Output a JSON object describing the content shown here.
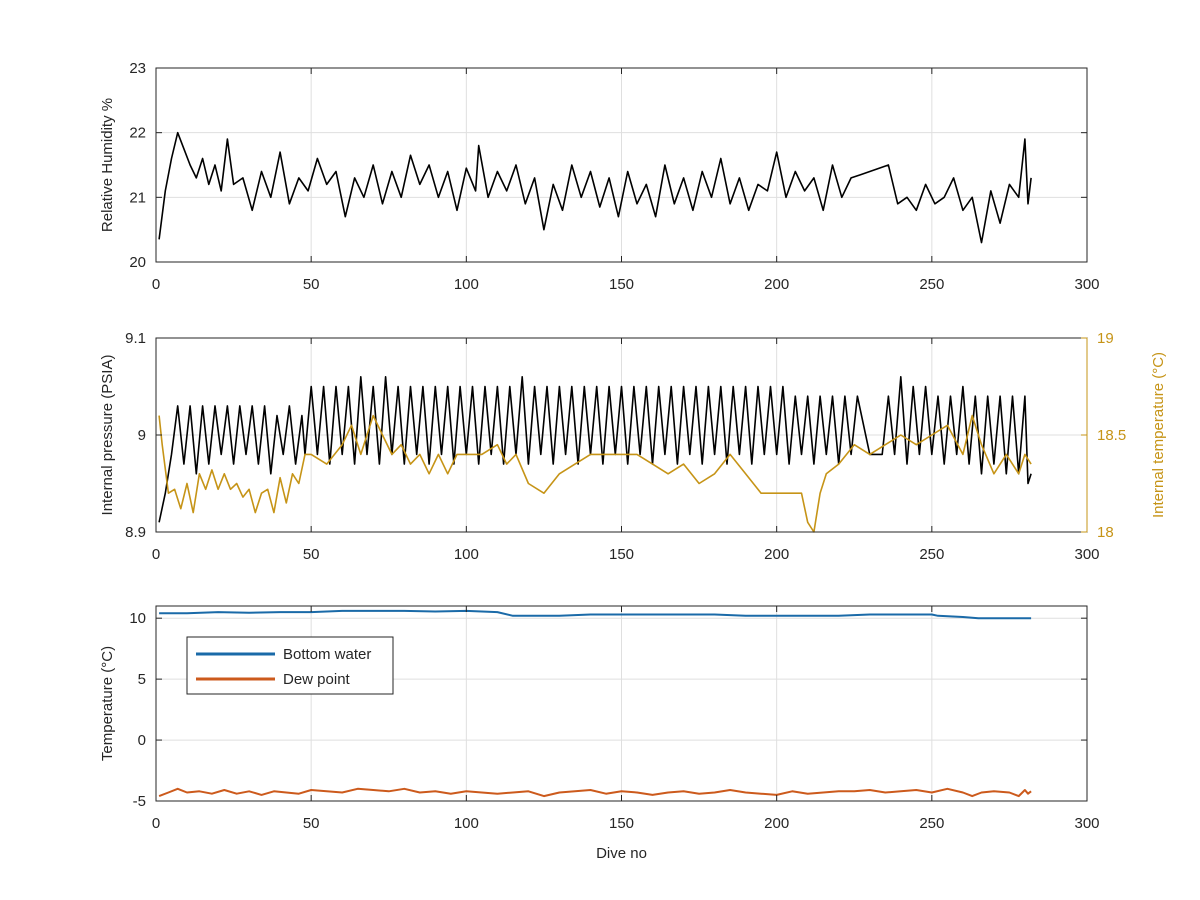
{
  "figure": {
    "background": "#ffffff",
    "grid_color": "#dfdfdf",
    "axis_color": "#262626"
  },
  "chart_data": [
    {
      "type": "line",
      "ylabel": "Relative Humidity %",
      "xlim": [
        0,
        300
      ],
      "ylim": [
        20,
        23
      ],
      "xticks": [
        0,
        50,
        100,
        150,
        200,
        250,
        300
      ],
      "yticks": [
        20,
        21,
        22,
        23
      ],
      "grid": true,
      "series": [
        {
          "color": "#000000",
          "x": [
            1,
            3,
            5,
            7,
            9,
            11,
            13,
            15,
            17,
            19,
            21,
            23,
            25,
            28,
            31,
            34,
            37,
            40,
            43,
            46,
            49,
            52,
            55,
            58,
            61,
            64,
            67,
            70,
            73,
            76,
            79,
            82,
            85,
            88,
            91,
            94,
            97,
            100,
            103,
            104,
            107,
            110,
            113,
            116,
            119,
            122,
            125,
            128,
            131,
            134,
            137,
            140,
            143,
            146,
            149,
            152,
            155,
            158,
            161,
            164,
            167,
            170,
            173,
            176,
            179,
            182,
            185,
            188,
            191,
            194,
            197,
            200,
            203,
            206,
            209,
            212,
            215,
            218,
            221,
            224,
            227,
            230,
            233,
            236,
            239,
            242,
            245,
            248,
            251,
            254,
            257,
            260,
            263,
            266,
            269,
            272,
            275,
            278,
            280,
            281,
            282
          ],
          "y": [
            20.35,
            21.1,
            21.6,
            22.0,
            21.75,
            21.5,
            21.3,
            21.6,
            21.2,
            21.5,
            21.1,
            21.9,
            21.2,
            21.3,
            20.8,
            21.4,
            21.0,
            21.7,
            20.9,
            21.3,
            21.1,
            21.6,
            21.2,
            21.4,
            20.7,
            21.3,
            21.0,
            21.5,
            20.9,
            21.4,
            21.0,
            21.65,
            21.2,
            21.5,
            21.0,
            21.4,
            20.8,
            21.45,
            21.1,
            21.8,
            21.0,
            21.4,
            21.1,
            21.5,
            20.9,
            21.3,
            20.5,
            21.2,
            20.8,
            21.5,
            21.0,
            21.4,
            20.85,
            21.3,
            20.7,
            21.4,
            20.9,
            21.2,
            20.7,
            21.5,
            20.9,
            21.3,
            20.8,
            21.4,
            21.0,
            21.6,
            20.9,
            21.3,
            20.8,
            21.2,
            21.1,
            21.7,
            21.0,
            21.4,
            21.1,
            21.3,
            20.8,
            21.5,
            21.0,
            21.3,
            21.35,
            21.4,
            21.45,
            21.5,
            20.9,
            21.0,
            20.8,
            21.2,
            20.9,
            21.0,
            21.3,
            20.8,
            21.0,
            20.3,
            21.1,
            20.6,
            21.2,
            21.0,
            21.9,
            20.9,
            21.3
          ]
        }
      ]
    },
    {
      "type": "line",
      "ylabel": "Internal pressure (PSIA)",
      "y2label": "Internal temperature (°C)",
      "xlim": [
        0,
        300
      ],
      "ylim": [
        8.9,
        9.1
      ],
      "y2lim": [
        18,
        19
      ],
      "xticks": [
        0,
        50,
        100,
        150,
        200,
        250,
        300
      ],
      "yticks": [
        8.9,
        9,
        9.1
      ],
      "y2ticks": [
        18,
        18.5,
        19
      ],
      "grid": true,
      "series": [
        {
          "axis": "left",
          "color": "#000000",
          "x": [
            1,
            3,
            5,
            7,
            9,
            11,
            13,
            15,
            17,
            19,
            21,
            23,
            25,
            27,
            29,
            31,
            33,
            35,
            37,
            39,
            41,
            43,
            45,
            47,
            48,
            50,
            52,
            54,
            56,
            58,
            60,
            62,
            64,
            66,
            68,
            70,
            72,
            74,
            76,
            78,
            80,
            82,
            84,
            86,
            88,
            90,
            92,
            94,
            96,
            98,
            100,
            102,
            104,
            106,
            108,
            110,
            112,
            114,
            116,
            118,
            120,
            122,
            124,
            126,
            128,
            130,
            132,
            134,
            136,
            138,
            140,
            142,
            144,
            146,
            148,
            150,
            152,
            154,
            156,
            158,
            160,
            162,
            164,
            166,
            168,
            170,
            172,
            174,
            176,
            178,
            180,
            182,
            184,
            186,
            188,
            190,
            192,
            194,
            196,
            198,
            200,
            202,
            204,
            206,
            208,
            210,
            212,
            214,
            216,
            218,
            220,
            222,
            224,
            226,
            230,
            234,
            236,
            238,
            240,
            242,
            244,
            246,
            248,
            250,
            252,
            254,
            256,
            258,
            260,
            262,
            264,
            266,
            268,
            270,
            272,
            274,
            276,
            278,
            280,
            281,
            282
          ],
          "y": [
            8.91,
            8.94,
            8.98,
            9.03,
            8.97,
            9.03,
            8.96,
            9.03,
            8.97,
            9.03,
            8.98,
            9.03,
            8.97,
            9.03,
            8.98,
            9.03,
            8.97,
            9.03,
            8.96,
            9.02,
            8.98,
            9.03,
            8.97,
            9.02,
            8.98,
            9.05,
            8.98,
            9.05,
            8.97,
            9.05,
            8.98,
            9.05,
            8.97,
            9.06,
            8.98,
            9.05,
            8.97,
            9.06,
            8.98,
            9.05,
            8.97,
            9.05,
            8.98,
            9.05,
            8.97,
            9.05,
            8.98,
            9.05,
            8.97,
            9.05,
            8.98,
            9.05,
            8.97,
            9.05,
            8.98,
            9.05,
            8.97,
            9.05,
            8.98,
            9.06,
            8.97,
            9.05,
            8.98,
            9.05,
            8.97,
            9.05,
            8.98,
            9.05,
            8.97,
            9.05,
            8.98,
            9.05,
            8.97,
            9.05,
            8.98,
            9.05,
            8.97,
            9.05,
            8.98,
            9.05,
            8.97,
            9.05,
            8.98,
            9.05,
            8.97,
            9.05,
            8.98,
            9.05,
            8.97,
            9.05,
            8.98,
            9.05,
            8.97,
            9.05,
            8.98,
            9.05,
            8.97,
            9.05,
            8.98,
            9.05,
            8.98,
            9.05,
            8.97,
            9.04,
            8.98,
            9.04,
            8.97,
            9.04,
            8.98,
            9.04,
            8.97,
            9.04,
            8.98,
            9.04,
            8.98,
            8.98,
            9.04,
            8.98,
            9.06,
            8.97,
            9.05,
            8.98,
            9.05,
            8.98,
            9.04,
            8.97,
            9.04,
            8.98,
            9.05,
            8.97,
            9.04,
            8.96,
            9.04,
            8.97,
            9.04,
            8.96,
            9.04,
            8.96,
            9.04,
            8.95,
            8.96
          ]
        },
        {
          "axis": "right",
          "color": "#c69417",
          "x": [
            1,
            2,
            4,
            6,
            8,
            10,
            12,
            14,
            16,
            18,
            20,
            22,
            24,
            26,
            28,
            30,
            32,
            34,
            36,
            38,
            40,
            42,
            44,
            46,
            48,
            50,
            55,
            60,
            63,
            66,
            70,
            73,
            76,
            79,
            82,
            85,
            88,
            91,
            94,
            97,
            100,
            105,
            110,
            113,
            116,
            120,
            125,
            130,
            135,
            140,
            145,
            150,
            155,
            160,
            165,
            170,
            175,
            180,
            185,
            190,
            195,
            200,
            205,
            208,
            210,
            212,
            214,
            216,
            220,
            225,
            230,
            235,
            240,
            245,
            250,
            255,
            260,
            263,
            266,
            270,
            274,
            278,
            280,
            282
          ],
          "y": [
            18.6,
            18.45,
            18.2,
            18.22,
            18.12,
            18.25,
            18.1,
            18.3,
            18.22,
            18.32,
            18.22,
            18.3,
            18.22,
            18.25,
            18.18,
            18.22,
            18.1,
            18.2,
            18.22,
            18.1,
            18.28,
            18.15,
            18.3,
            18.25,
            18.4,
            18.4,
            18.35,
            18.45,
            18.55,
            18.4,
            18.6,
            18.5,
            18.4,
            18.45,
            18.35,
            18.4,
            18.3,
            18.4,
            18.3,
            18.4,
            18.4,
            18.4,
            18.45,
            18.35,
            18.4,
            18.25,
            18.2,
            18.3,
            18.35,
            18.4,
            18.4,
            18.4,
            18.4,
            18.35,
            18.3,
            18.35,
            18.25,
            18.3,
            18.4,
            18.3,
            18.2,
            18.2,
            18.2,
            18.2,
            18.05,
            18.0,
            18.2,
            18.3,
            18.35,
            18.45,
            18.4,
            18.45,
            18.5,
            18.45,
            18.5,
            18.55,
            18.4,
            18.6,
            18.45,
            18.3,
            18.4,
            18.3,
            18.4,
            18.35
          ]
        }
      ]
    },
    {
      "type": "line",
      "xlabel": "Dive no",
      "ylabel": "Temperature (°C)",
      "xlim": [
        0,
        300
      ],
      "ylim": [
        -5,
        11
      ],
      "xticks": [
        0,
        50,
        100,
        150,
        200,
        250,
        300
      ],
      "yticks": [
        -5,
        0,
        5,
        10
      ],
      "grid": true,
      "legend_position": "top-left",
      "series": [
        {
          "name": "Bottom water",
          "color": "#1a6aa8",
          "x": [
            1,
            10,
            20,
            30,
            40,
            50,
            60,
            70,
            80,
            90,
            100,
            110,
            115,
            120,
            130,
            140,
            150,
            160,
            170,
            180,
            190,
            200,
            210,
            220,
            230,
            240,
            250,
            252,
            260,
            265,
            270,
            282
          ],
          "y": [
            10.4,
            10.4,
            10.5,
            10.45,
            10.5,
            10.5,
            10.6,
            10.6,
            10.6,
            10.55,
            10.6,
            10.5,
            10.2,
            10.2,
            10.2,
            10.3,
            10.3,
            10.3,
            10.3,
            10.3,
            10.2,
            10.2,
            10.2,
            10.2,
            10.3,
            10.3,
            10.3,
            10.2,
            10.1,
            10.0,
            10.0,
            10.0
          ]
        },
        {
          "name": "Dew point",
          "color": "#cc5a1c",
          "x": [
            1,
            4,
            7,
            10,
            14,
            18,
            22,
            26,
            30,
            34,
            38,
            42,
            46,
            50,
            55,
            60,
            65,
            70,
            75,
            80,
            85,
            90,
            95,
            100,
            105,
            110,
            115,
            120,
            125,
            130,
            135,
            140,
            145,
            150,
            155,
            160,
            165,
            170,
            175,
            180,
            185,
            190,
            195,
            200,
            205,
            210,
            215,
            220,
            225,
            230,
            235,
            240,
            245,
            250,
            255,
            260,
            263,
            266,
            270,
            275,
            278,
            280,
            281,
            282
          ],
          "y": [
            -4.6,
            -4.3,
            -4.0,
            -4.3,
            -4.2,
            -4.4,
            -4.1,
            -4.4,
            -4.2,
            -4.5,
            -4.2,
            -4.3,
            -4.4,
            -4.1,
            -4.2,
            -4.3,
            -4.0,
            -4.1,
            -4.2,
            -4.0,
            -4.3,
            -4.2,
            -4.4,
            -4.2,
            -4.3,
            -4.4,
            -4.3,
            -4.2,
            -4.6,
            -4.3,
            -4.2,
            -4.1,
            -4.4,
            -4.2,
            -4.3,
            -4.5,
            -4.3,
            -4.2,
            -4.4,
            -4.3,
            -4.1,
            -4.3,
            -4.4,
            -4.5,
            -4.2,
            -4.4,
            -4.3,
            -4.2,
            -4.2,
            -4.1,
            -4.3,
            -4.2,
            -4.1,
            -4.3,
            -4.0,
            -4.3,
            -4.6,
            -4.3,
            -4.2,
            -4.3,
            -4.6,
            -4.1,
            -4.4,
            -4.2
          ]
        }
      ]
    }
  ]
}
